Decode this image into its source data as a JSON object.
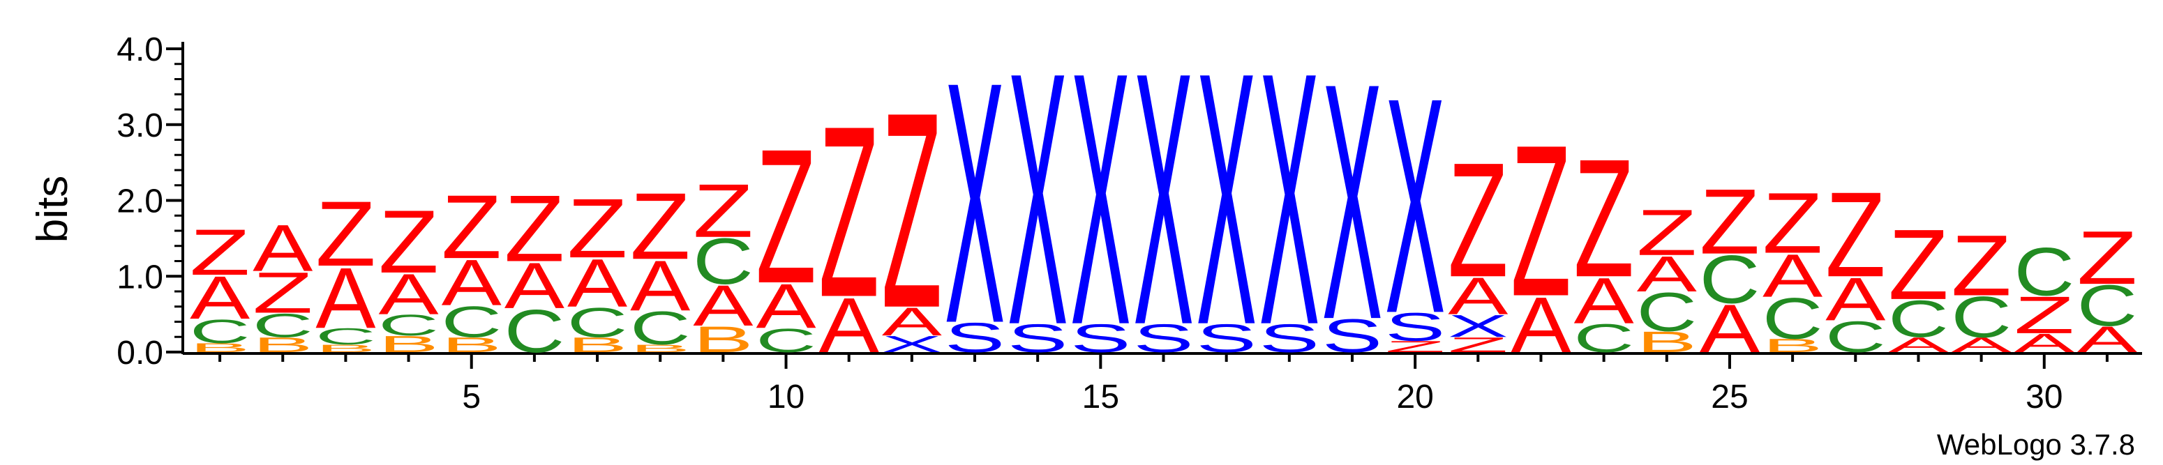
{
  "chart_data": {
    "type": "sequence-logo",
    "ylabel": "bits",
    "ylim": [
      0,
      4
    ],
    "yticks": [
      "0.0",
      "1.0",
      "2.0",
      "3.0",
      "4.0"
    ],
    "xticks": [
      5,
      10,
      15,
      20,
      25,
      30
    ],
    "positions": 31,
    "footer": "WebLogo 3.7.8",
    "colors": {
      "Z": "#ff0000",
      "A": "#ff0000",
      "C": "#228b22",
      "B": "#ff8c00",
      "X": "#0000ff",
      "S": "#0000ff"
    },
    "columns": [
      [
        [
          "B",
          0.12
        ],
        [
          "C",
          0.32
        ],
        [
          "A",
          0.58
        ],
        [
          "Z",
          0.62
        ]
      ],
      [
        [
          "B",
          0.2
        ],
        [
          "C",
          0.32
        ],
        [
          "Z",
          0.55
        ],
        [
          "A",
          0.63
        ]
      ],
      [
        [
          "B",
          0.1
        ],
        [
          "C",
          0.22
        ],
        [
          "A",
          0.82
        ],
        [
          "Z",
          0.88
        ]
      ],
      [
        [
          "B",
          0.22
        ],
        [
          "C",
          0.28
        ],
        [
          "A",
          0.55
        ],
        [
          "Z",
          0.85
        ]
      ],
      [
        [
          "B",
          0.2
        ],
        [
          "C",
          0.42
        ],
        [
          "A",
          0.62
        ],
        [
          "Z",
          0.86
        ]
      ],
      [
        [
          "C",
          0.58
        ],
        [
          "A",
          0.62
        ],
        [
          "Z",
          0.9
        ]
      ],
      [
        [
          "B",
          0.2
        ],
        [
          "C",
          0.4
        ],
        [
          "A",
          0.65
        ],
        [
          "Z",
          0.8
        ]
      ],
      [
        [
          "B",
          0.1
        ],
        [
          "C",
          0.45
        ],
        [
          "A",
          0.68
        ],
        [
          "Z",
          0.9
        ]
      ],
      [
        [
          "B",
          0.35
        ],
        [
          "A",
          0.55
        ],
        [
          "C",
          0.62
        ],
        [
          "Z",
          0.72
        ]
      ],
      [
        [
          "C",
          0.32
        ],
        [
          "A",
          0.6
        ],
        [
          "Z",
          1.82
        ]
      ],
      [
        [
          "A",
          0.74
        ],
        [
          "Z",
          2.32
        ]
      ],
      [
        [
          "X",
          0.22
        ],
        [
          "A",
          0.38
        ],
        [
          "Z",
          2.65
        ]
      ],
      [
        [
          "S",
          0.4
        ],
        [
          "X",
          3.27
        ]
      ],
      [
        [
          "S",
          0.38
        ],
        [
          "X",
          3.42
        ]
      ],
      [
        [
          "S",
          0.38
        ],
        [
          "X",
          3.42
        ]
      ],
      [
        [
          "S",
          0.38
        ],
        [
          "X",
          3.42
        ]
      ],
      [
        [
          "S",
          0.38
        ],
        [
          "X",
          3.42
        ]
      ],
      [
        [
          "S",
          0.38
        ],
        [
          "X",
          3.42
        ]
      ],
      [
        [
          "S",
          0.45
        ],
        [
          "X",
          3.2
        ]
      ],
      [
        [
          "Z",
          0.15
        ],
        [
          "S",
          0.38
        ],
        [
          "X",
          2.92
        ]
      ],
      [
        [
          "Z",
          0.2
        ],
        [
          "X",
          0.3
        ],
        [
          "A",
          0.5
        ],
        [
          "Z",
          1.55
        ]
      ],
      [
        [
          "A",
          0.75
        ],
        [
          "Z",
          2.05
        ]
      ],
      [
        [
          "C",
          0.38
        ],
        [
          "A",
          0.62
        ],
        [
          "Z",
          1.6
        ]
      ],
      [
        [
          "B",
          0.28
        ],
        [
          "C",
          0.52
        ],
        [
          "A",
          0.48
        ],
        [
          "Z",
          0.62
        ]
      ],
      [
        [
          "A",
          0.65
        ],
        [
          "C",
          0.65
        ],
        [
          "Z",
          0.88
        ]
      ],
      [
        [
          "B",
          0.18
        ],
        [
          "C",
          0.55
        ],
        [
          "A",
          0.58
        ],
        [
          "Z",
          0.82
        ]
      ],
      [
        [
          "C",
          0.42
        ],
        [
          "A",
          0.58
        ],
        [
          "Z",
          1.15
        ]
      ],
      [
        [
          "A",
          0.2
        ],
        [
          "C",
          0.5
        ],
        [
          "Z",
          0.95
        ]
      ],
      [
        [
          "A",
          0.2
        ],
        [
          "C",
          0.55
        ],
        [
          "Z",
          0.82
        ]
      ],
      [
        [
          "A",
          0.25
        ],
        [
          "Z",
          0.5
        ],
        [
          "C",
          0.65
        ]
      ],
      [
        [
          "A",
          0.35
        ],
        [
          "C",
          0.55
        ],
        [
          "Z",
          0.72
        ]
      ]
    ]
  }
}
